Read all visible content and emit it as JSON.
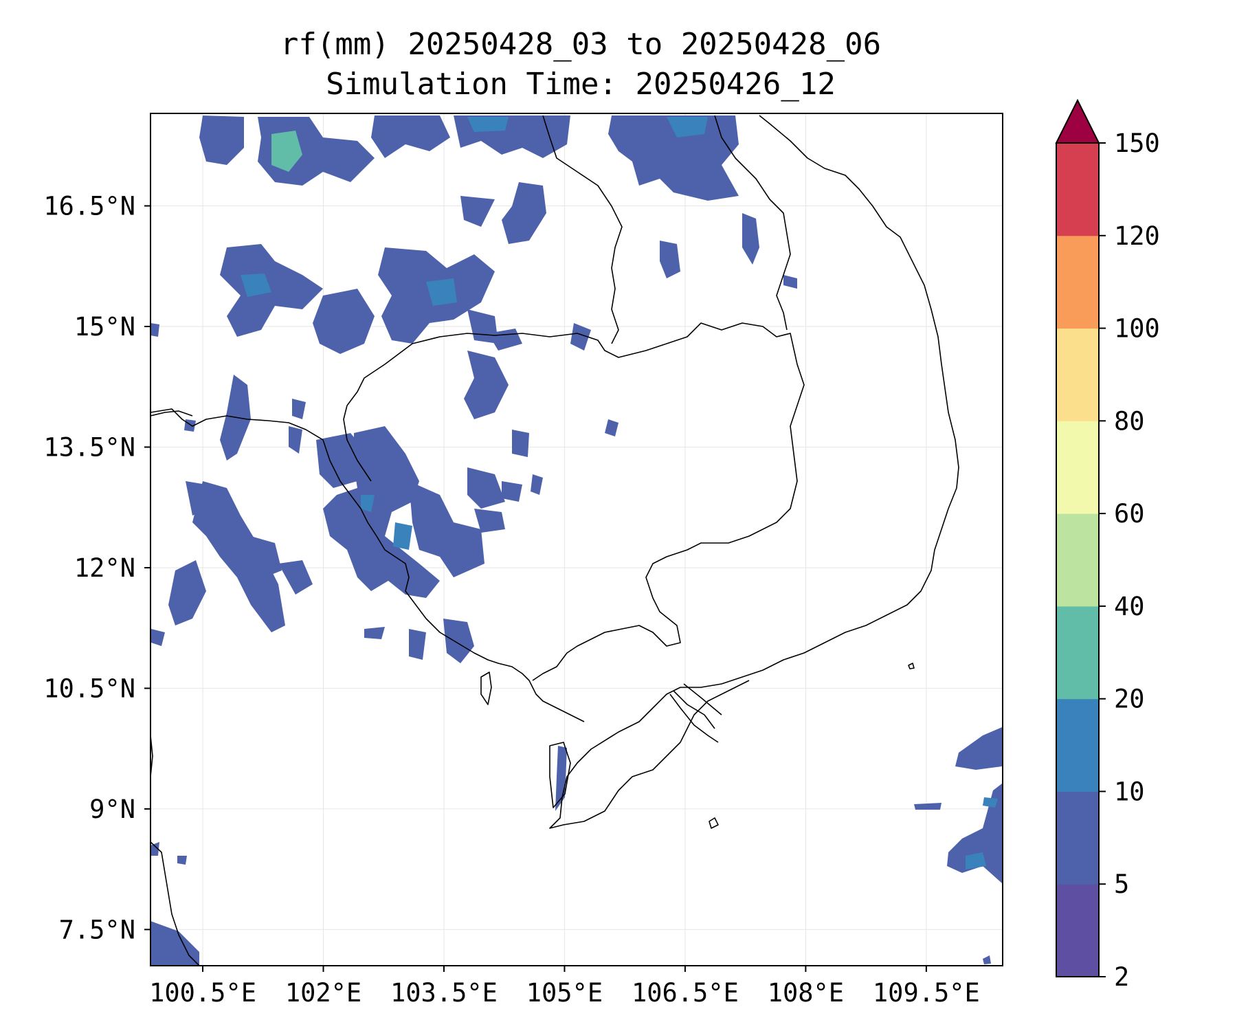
{
  "title": {
    "line1": "rf(mm) 20250428_03 to 20250428_06",
    "line2": "Simulation Time: 20250426_12"
  },
  "map": {
    "lon_range": [
      99.85,
      110.45
    ],
    "lat_range": [
      7.05,
      17.65
    ],
    "lon_ticks": [
      100.5,
      102,
      103.5,
      105,
      106.5,
      108,
      109.5
    ],
    "lon_tick_labels": [
      "100.5°E",
      "102°E",
      "103.5°E",
      "105°E",
      "106.5°E",
      "108°E",
      "109.5°E"
    ],
    "lat_ticks": [
      7.5,
      9,
      10.5,
      12,
      13.5,
      15,
      16.5
    ],
    "lat_tick_labels": [
      "7.5°N",
      "9°N",
      "10.5°N",
      "12°N",
      "13.5°N",
      "15°N",
      "16.5°N"
    ],
    "grid": true
  },
  "colorbar": {
    "levels": [
      2,
      5,
      10,
      20,
      40,
      60,
      80,
      100,
      120,
      150
    ],
    "labels": [
      "2",
      "5",
      "10",
      "20",
      "40",
      "60",
      "80",
      "100",
      "120",
      "150"
    ],
    "colors": [
      "#5e4fa2",
      "#4e62ac",
      "#3a82bc",
      "#62bda8",
      "#bde3a1",
      "#f2f9ad",
      "#fbdf8c",
      "#f99c5a",
      "#d63f4f"
    ],
    "extend_color": "#9e0142",
    "extend": "max"
  },
  "colors": {
    "rain_dark": "#5a4fa0",
    "rain_blue": "#4e62ac",
    "rain_mid": "#3a82bc",
    "rain_teal": "#62bda8",
    "coast": "#000000"
  }
}
